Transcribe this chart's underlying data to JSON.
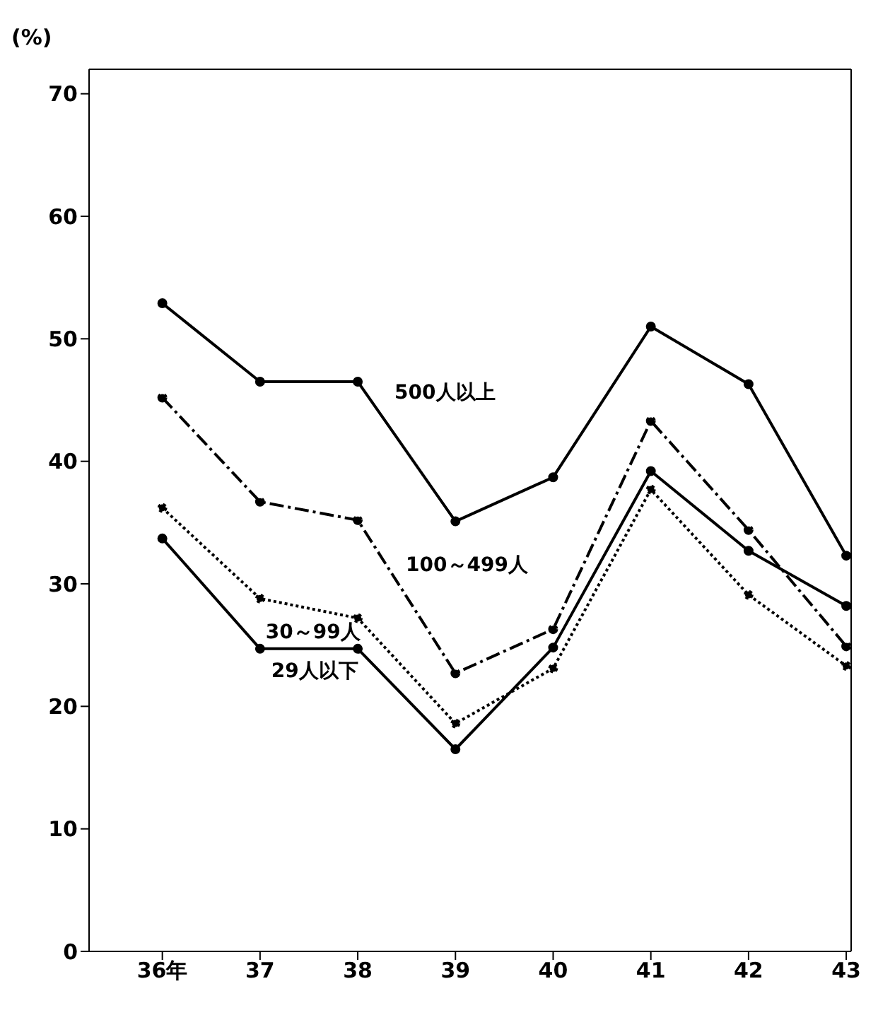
{
  "chart_data": {
    "type": "line",
    "ylabel": "(%)",
    "categories": [
      "36年",
      "37",
      "38",
      "39",
      "40",
      "41",
      "42",
      "43"
    ],
    "series": [
      {
        "name": "500人以上",
        "color": "#000000",
        "line_style": "solid",
        "values": [
          52.9,
          46.5,
          46.5,
          35.1,
          38.7,
          51.0,
          46.3,
          32.3
        ]
      },
      {
        "name": "100～499人",
        "color": "#000000",
        "line_style": "dashed",
        "values": [
          45.2,
          36.7,
          35.2,
          22.7,
          26.3,
          43.3,
          34.4,
          24.9
        ]
      },
      {
        "name": "30～99人",
        "color": "#000000",
        "line_style": "dotted",
        "values": [
          36.2,
          28.8,
          27.2,
          18.6,
          23.1,
          37.7,
          29.1,
          23.3
        ]
      },
      {
        "name": "29人以下",
        "color": "#000000",
        "line_style": "solid",
        "values": [
          33.7,
          24.7,
          24.7,
          16.5,
          24.8,
          39.2,
          32.7,
          28.2
        ]
      }
    ],
    "ylim": [
      0,
      72
    ],
    "yticks": [
      0,
      10,
      20,
      30,
      40,
      50,
      60,
      70
    ],
    "grid": false,
    "legend": false,
    "marker": "circle"
  }
}
